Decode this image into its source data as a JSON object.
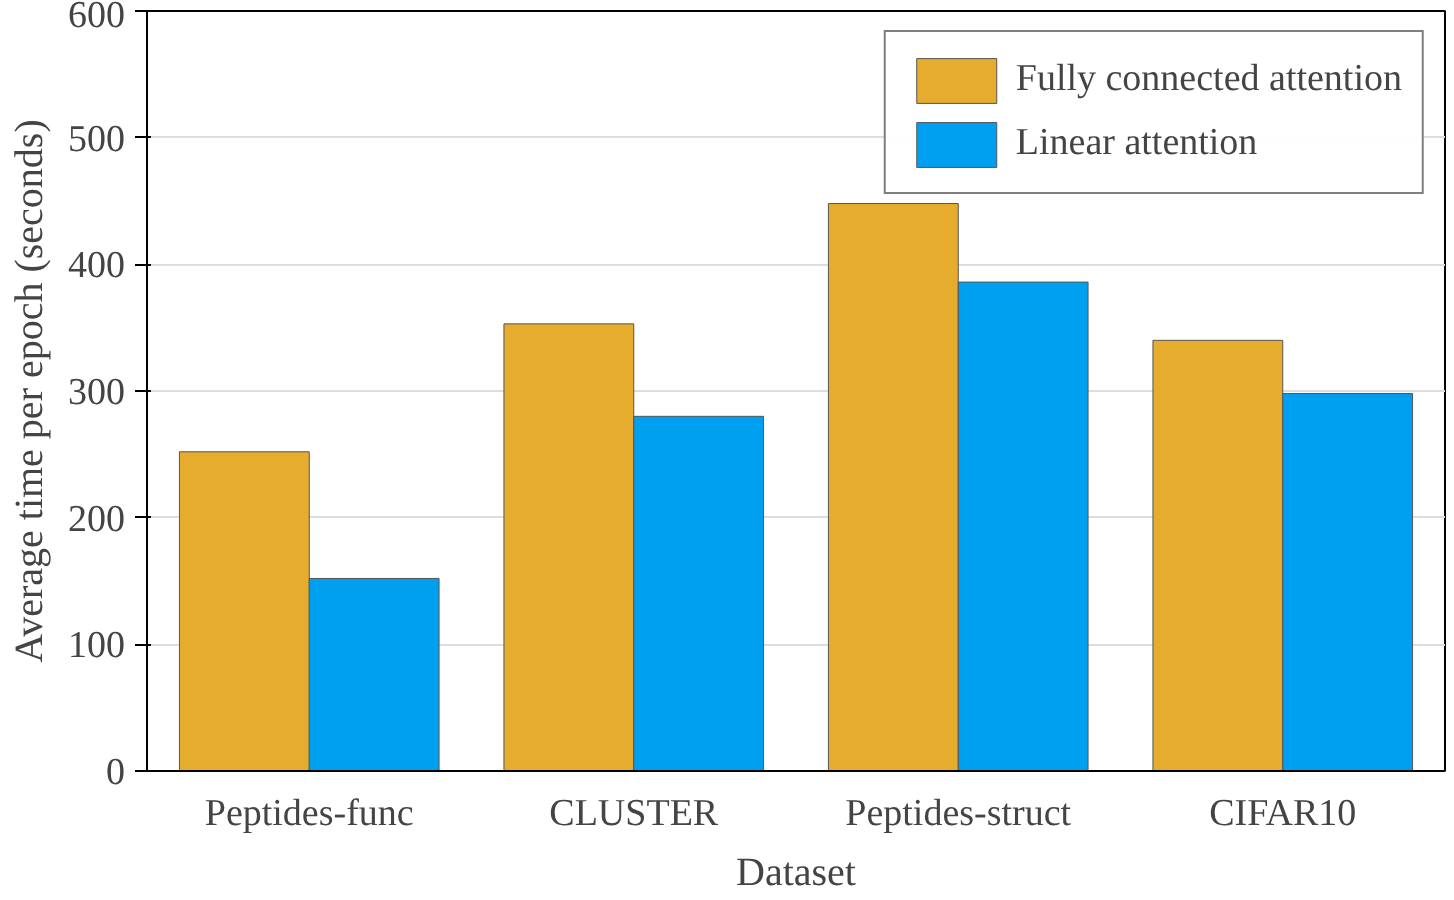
{
  "chart_data": {
    "type": "bar",
    "xlabel": "Dataset",
    "ylabel": "Average time per epoch (seconds)",
    "categories": [
      "Peptides-func",
      "CLUSTER",
      "Peptides-struct",
      "CIFAR10"
    ],
    "series": [
      {
        "name": "Fully connected attention",
        "color": "#e6ac2e",
        "values": [
          252,
          353,
          448,
          340
        ]
      },
      {
        "name": "Linear attention",
        "color": "#00a0f0",
        "values": [
          152,
          280,
          386,
          298
        ]
      }
    ],
    "ylim": [
      0,
      600
    ],
    "yticks": [
      0,
      100,
      200,
      300,
      400,
      500,
      600
    ],
    "grid": "y",
    "legend": "top right"
  }
}
